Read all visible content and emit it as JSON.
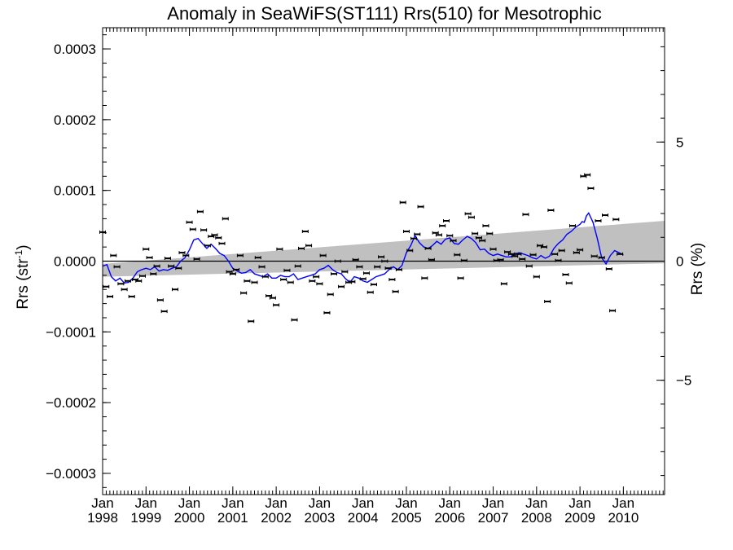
{
  "chart_data": {
    "type": "scatter",
    "title": "Anomaly in SeaWiFS(ST111) Rrs(510) for Mesotrophic",
    "ylabel_left": "Rrs (str",
    "ylabel_left_sup": "-1",
    "ylabel_left_close": ")",
    "ylabel_right": "Rrs (%)",
    "xlim": [
      1998.0,
      2010.95
    ],
    "ylim": [
      -0.00033,
      0.00033
    ],
    "ylim_right": [
      -9.8,
      9.8
    ],
    "y_ticks": [
      {
        "value": 0.0003,
        "label": "0.0003"
      },
      {
        "value": 0.0002,
        "label": "0.0002"
      },
      {
        "value": 0.0001,
        "label": "0.0001"
      },
      {
        "value": 0.0,
        "label": "0.0000"
      },
      {
        "value": -0.0001,
        "label": "−0.0001"
      },
      {
        "value": -0.0002,
        "label": "−0.0002"
      },
      {
        "value": -0.0003,
        "label": "−0.0003"
      }
    ],
    "y_right_ticks": [
      {
        "value": 5,
        "label": "5"
      },
      {
        "value": 0,
        "label": "0"
      },
      {
        "value": -5,
        "label": "−5"
      }
    ],
    "x_ticks": [
      {
        "value": 1998,
        "month": "Jan",
        "year": "1998"
      },
      {
        "value": 1999,
        "month": "Jan",
        "year": "1999"
      },
      {
        "value": 2000,
        "month": "Jan",
        "year": "2000"
      },
      {
        "value": 2001,
        "month": "Jan",
        "year": "2001"
      },
      {
        "value": 2002,
        "month": "Jan",
        "year": "2002"
      },
      {
        "value": 2003,
        "month": "Jan",
        "year": "2003"
      },
      {
        "value": 2004,
        "month": "Jan",
        "year": "2004"
      },
      {
        "value": 2005,
        "month": "Jan",
        "year": "2005"
      },
      {
        "value": 2006,
        "month": "Jan",
        "year": "2006"
      },
      {
        "value": 2007,
        "month": "Jan",
        "year": "2007"
      },
      {
        "value": 2008,
        "month": "Jan",
        "year": "2008"
      },
      {
        "value": 2009,
        "month": "Jan",
        "year": "2009"
      },
      {
        "value": 2010,
        "month": "Jan",
        "year": "2010"
      }
    ],
    "trend_band": {
      "lower": [
        [
          1998.0,
          -2.2e-05
        ],
        [
          2010.95,
          -3e-06
        ]
      ],
      "upper": [
        [
          1998.0,
          -4e-06
        ],
        [
          2010.95,
          5.7e-05
        ]
      ]
    },
    "zero_line": 0.0,
    "points": [
      [
        1998.0,
        4.1e-05
      ],
      [
        1998.08,
        -3.6e-05
      ],
      [
        1998.17,
        -5e-05
      ],
      [
        1998.25,
        8e-06
      ],
      [
        1998.33,
        -8e-06
      ],
      [
        1998.42,
        -3.2e-05
      ],
      [
        1998.5,
        -4e-05
      ],
      [
        1998.58,
        -2.8e-05
      ],
      [
        1998.67,
        -5e-05
      ],
      [
        1998.75,
        -2.6e-05
      ],
      [
        1998.83,
        -2.8e-05
      ],
      [
        1998.92,
        -2.1e-05
      ],
      [
        1999.0,
        1.7e-05
      ],
      [
        1999.08,
        5e-06
      ],
      [
        1999.17,
        -1.8e-05
      ],
      [
        1999.25,
        -7e-06
      ],
      [
        1999.33,
        -5.5e-05
      ],
      [
        1999.42,
        -7.1e-05
      ],
      [
        1999.5,
        4e-06
      ],
      [
        1999.58,
        -7e-06
      ],
      [
        1999.67,
        -4e-05
      ],
      [
        1999.75,
        -1e-05
      ],
      [
        1999.83,
        1.2e-05
      ],
      [
        1999.92,
        8e-06
      ],
      [
        2000.0,
        5.5e-05
      ],
      [
        2000.08,
        4.5e-05
      ],
      [
        2000.17,
        3e-06
      ],
      [
        2000.25,
        7e-05
      ],
      [
        2000.33,
        4.4e-05
      ],
      [
        2000.42,
        2.2e-05
      ],
      [
        2000.5,
        3.5e-05
      ],
      [
        2000.58,
        3.7e-05
      ],
      [
        2000.67,
        3.3e-05
      ],
      [
        2000.75,
        2.5e-05
      ],
      [
        2000.83,
        6e-05
      ],
      [
        2000.92,
        -1.5e-05
      ],
      [
        2001.0,
        -1.8e-05
      ],
      [
        2001.08,
        -1.2e-05
      ],
      [
        2001.17,
        8e-06
      ],
      [
        2001.25,
        -4.5e-05
      ],
      [
        2001.33,
        -2.8e-05
      ],
      [
        2001.42,
        -8.5e-05
      ],
      [
        2001.5,
        -3e-05
      ],
      [
        2001.58,
        5e-06
      ],
      [
        2001.67,
        -8e-06
      ],
      [
        2001.75,
        -2.2e-05
      ],
      [
        2001.83,
        -4.9e-05
      ],
      [
        2001.92,
        -5.2e-05
      ],
      [
        2002.0,
        -6.2e-05
      ],
      [
        2002.08,
        1.7e-05
      ],
      [
        2002.17,
        -2.6e-05
      ],
      [
        2002.25,
        -1.3e-05
      ],
      [
        2002.33,
        -3e-05
      ],
      [
        2002.42,
        -8.3e-05
      ],
      [
        2002.5,
        -7e-06
      ],
      [
        2002.58,
        1.8e-05
      ],
      [
        2002.67,
        4.2e-05
      ],
      [
        2002.75,
        2.2e-05
      ],
      [
        2002.83,
        -2.8e-05
      ],
      [
        2002.92,
        -2.2e-05
      ],
      [
        2003.0,
        -3.2e-05
      ],
      [
        2003.08,
        8e-06
      ],
      [
        2003.17,
        -7.3e-05
      ],
      [
        2003.25,
        -4.7e-05
      ],
      [
        2003.33,
        -1.8e-05
      ],
      [
        2003.42,
        0.0
      ],
      [
        2003.5,
        -3.6e-05
      ],
      [
        2003.58,
        -1.5e-05
      ],
      [
        2003.67,
        -3e-05
      ],
      [
        2003.75,
        -2.9e-05
      ],
      [
        2003.83,
        2e-06
      ],
      [
        2003.92,
        -8e-06
      ],
      [
        2004.0,
        -2.5e-05
      ],
      [
        2004.08,
        -1.7e-05
      ],
      [
        2004.17,
        -4.4e-05
      ],
      [
        2004.25,
        -3.3e-05
      ],
      [
        2004.33,
        -8e-06
      ],
      [
        2004.42,
        6e-06
      ],
      [
        2004.5,
        0.0
      ],
      [
        2004.58,
        -1e-05
      ],
      [
        2004.67,
        -2.6e-05
      ],
      [
        2004.75,
        -4.3e-05
      ],
      [
        2004.83,
        -1.2e-05
      ],
      [
        2004.92,
        8.3e-05
      ],
      [
        2005.0,
        4.2e-05
      ],
      [
        2005.08,
        1.5e-05
      ],
      [
        2005.17,
        3.2e-05
      ],
      [
        2005.25,
        3.8e-05
      ],
      [
        2005.33,
        7.7e-05
      ],
      [
        2005.42,
        -2.4e-05
      ],
      [
        2005.5,
        1.8e-05
      ],
      [
        2005.58,
        2e-06
      ],
      [
        2005.67,
        4e-05
      ],
      [
        2005.75,
        3.7e-05
      ],
      [
        2005.83,
        5e-05
      ],
      [
        2005.92,
        5.7e-05
      ],
      [
        2006.0,
        3.6e-05
      ],
      [
        2006.08,
        2.9e-05
      ],
      [
        2006.17,
        9e-06
      ],
      [
        2006.25,
        -2.4e-05
      ],
      [
        2006.33,
        1e-06
      ],
      [
        2006.42,
        6.7e-05
      ],
      [
        2006.5,
        6.2e-05
      ],
      [
        2006.58,
        3.9e-05
      ],
      [
        2006.67,
        3.3e-05
      ],
      [
        2006.75,
        2.9e-05
      ],
      [
        2006.83,
        5e-05
      ],
      [
        2006.92,
        3.9e-05
      ],
      [
        2007.0,
        1.7e-05
      ],
      [
        2007.08,
        1e-06
      ],
      [
        2007.17,
        2e-06
      ],
      [
        2007.25,
        -3.2e-05
      ],
      [
        2007.33,
        1.3e-05
      ],
      [
        2007.42,
        1e-05
      ],
      [
        2007.5,
        7e-06
      ],
      [
        2007.58,
        1e-05
      ],
      [
        2007.67,
        3e-06
      ],
      [
        2007.75,
        6.6e-05
      ],
      [
        2007.83,
        -7e-06
      ],
      [
        2007.92,
        9e-06
      ],
      [
        2008.0,
        -2.2e-05
      ],
      [
        2008.08,
        2.2e-05
      ],
      [
        2008.17,
        2e-05
      ],
      [
        2008.25,
        -5.7e-05
      ],
      [
        2008.33,
        7.2e-05
      ],
      [
        2008.42,
        1e-05
      ],
      [
        2008.5,
        1e-06
      ],
      [
        2008.58,
        1.5e-05
      ],
      [
        2008.67,
        -1.9e-05
      ],
      [
        2008.75,
        -3.1e-05
      ],
      [
        2008.83,
        5e-05
      ],
      [
        2008.92,
        1.2e-05
      ],
      [
        2009.0,
        1.6e-05
      ],
      [
        2009.08,
        0.00012
      ],
      [
        2009.17,
        0.000122
      ],
      [
        2009.25,
        0.000103
      ],
      [
        2009.33,
        7e-06
      ],
      [
        2009.42,
        5.7e-05
      ],
      [
        2009.5,
        5e-06
      ],
      [
        2009.58,
        6.5e-05
      ],
      [
        2009.67,
        -1.1e-05
      ],
      [
        2009.75,
        -7e-05
      ],
      [
        2009.83,
        5.9e-05
      ],
      [
        2009.92,
        1e-05
      ]
    ],
    "moving_average": [
      [
        1998.0,
        -7e-06
      ],
      [
        1998.1,
        -5e-06
      ],
      [
        1998.2,
        -2.2e-05
      ],
      [
        1998.3,
        -2.8e-05
      ],
      [
        1998.4,
        -2.4e-05
      ],
      [
        1998.5,
        -3.1e-05
      ],
      [
        1998.6,
        -3e-05
      ],
      [
        1998.7,
        -2.4e-05
      ],
      [
        1998.8,
        -1.5e-05
      ],
      [
        1998.9,
        -1.2e-05
      ],
      [
        1999.0,
        -1e-05
      ],
      [
        1999.1,
        -1.2e-05
      ],
      [
        1999.2,
        -8e-06
      ],
      [
        1999.3,
        -1.4e-05
      ],
      [
        1999.4,
        -1.2e-05
      ],
      [
        1999.5,
        -1.3e-05
      ],
      [
        1999.6,
        -1e-05
      ],
      [
        1999.7,
        -8e-06
      ],
      [
        1999.8,
        0.0
      ],
      [
        1999.9,
        5e-06
      ],
      [
        2000.0,
        1.6e-05
      ],
      [
        2000.1,
        3e-05
      ],
      [
        2000.2,
        3.2e-05
      ],
      [
        2000.3,
        2.5e-05
      ],
      [
        2000.4,
        1.8e-05
      ],
      [
        2000.5,
        2.4e-05
      ],
      [
        2000.6,
        1.8e-05
      ],
      [
        2000.7,
        1.1e-05
      ],
      [
        2000.8,
        8e-06
      ],
      [
        2000.9,
        0.0
      ],
      [
        2001.0,
        -1e-05
      ],
      [
        2001.1,
        -1.4e-05
      ],
      [
        2001.2,
        -1.7e-05
      ],
      [
        2001.3,
        -1.6e-05
      ],
      [
        2001.4,
        -1.2e-05
      ],
      [
        2001.5,
        -1.8e-05
      ],
      [
        2001.6,
        -2e-05
      ],
      [
        2001.7,
        -2.2e-05
      ],
      [
        2001.8,
        -1.8e-05
      ],
      [
        2001.9,
        -2.4e-05
      ],
      [
        2002.0,
        -2.4e-05
      ],
      [
        2002.1,
        -2e-05
      ],
      [
        2002.2,
        -2.2e-05
      ],
      [
        2002.3,
        -2.2e-05
      ],
      [
        2002.4,
        -1.8e-05
      ],
      [
        2002.5,
        -2.6e-05
      ],
      [
        2002.6,
        -2.4e-05
      ],
      [
        2002.7,
        -2.2e-05
      ],
      [
        2002.8,
        -2e-05
      ],
      [
        2002.9,
        -1.8e-05
      ],
      [
        2003.0,
        -1.2e-05
      ],
      [
        2003.1,
        -1e-05
      ],
      [
        2003.2,
        -6e-06
      ],
      [
        2003.3,
        -1.2e-05
      ],
      [
        2003.4,
        -1.6e-05
      ],
      [
        2003.5,
        -1.8e-05
      ],
      [
        2003.6,
        -2.5e-05
      ],
      [
        2003.7,
        -3e-05
      ],
      [
        2003.8,
        -2.2e-05
      ],
      [
        2003.9,
        -2.4e-05
      ],
      [
        2004.0,
        -2.8e-05
      ],
      [
        2004.1,
        -3e-05
      ],
      [
        2004.2,
        -2.6e-05
      ],
      [
        2004.3,
        -2.2e-05
      ],
      [
        2004.4,
        -2e-05
      ],
      [
        2004.5,
        -1.8e-05
      ],
      [
        2004.6,
        -1.2e-05
      ],
      [
        2004.7,
        -8e-06
      ],
      [
        2004.8,
        -1.2e-05
      ],
      [
        2004.9,
        -6e-06
      ],
      [
        2005.0,
        1.2e-05
      ],
      [
        2005.1,
        2.2e-05
      ],
      [
        2005.2,
        3.6e-05
      ],
      [
        2005.3,
        2.6e-05
      ],
      [
        2005.4,
        2e-05
      ],
      [
        2005.5,
        1.8e-05
      ],
      [
        2005.6,
        2.2e-05
      ],
      [
        2005.7,
        2.8e-05
      ],
      [
        2005.8,
        2.4e-05
      ],
      [
        2005.9,
        3.1e-05
      ],
      [
        2006.0,
        3.3e-05
      ],
      [
        2006.1,
        2.5e-05
      ],
      [
        2006.2,
        2.4e-05
      ],
      [
        2006.3,
        3e-05
      ],
      [
        2006.4,
        3.5e-05
      ],
      [
        2006.5,
        3.2e-05
      ],
      [
        2006.6,
        2.6e-05
      ],
      [
        2006.7,
        1.6e-05
      ],
      [
        2006.8,
        1.7e-05
      ],
      [
        2006.9,
        1.1e-05
      ],
      [
        2007.0,
        8e-06
      ],
      [
        2007.1,
        1e-05
      ],
      [
        2007.2,
        8e-06
      ],
      [
        2007.3,
        6e-06
      ],
      [
        2007.4,
        6e-06
      ],
      [
        2007.5,
        1e-05
      ],
      [
        2007.6,
        1.2e-05
      ],
      [
        2007.7,
        1e-05
      ],
      [
        2007.8,
        8e-06
      ],
      [
        2007.9,
        5e-06
      ],
      [
        2008.0,
        3e-06
      ],
      [
        2008.1,
        8e-06
      ],
      [
        2008.2,
        4e-06
      ],
      [
        2008.3,
        7e-06
      ],
      [
        2008.4,
        1.8e-05
      ],
      [
        2008.5,
        2.5e-05
      ],
      [
        2008.6,
        3e-05
      ],
      [
        2008.7,
        3.8e-05
      ],
      [
        2008.8,
        4.2e-05
      ],
      [
        2008.9,
        4.8e-05
      ],
      [
        2009.0,
        5.2e-05
      ],
      [
        2009.05,
        5.6e-05
      ],
      [
        2009.1,
        5.5e-05
      ],
      [
        2009.15,
        6.4e-05
      ],
      [
        2009.2,
        6.8e-05
      ],
      [
        2009.3,
        5.5e-05
      ],
      [
        2009.4,
        3.2e-05
      ],
      [
        2009.5,
        5e-06
      ],
      [
        2009.6,
        -4e-06
      ],
      [
        2009.7,
        8e-06
      ],
      [
        2009.8,
        1.5e-05
      ],
      [
        2009.9,
        1.2e-05
      ],
      [
        2010.0,
        9e-06
      ]
    ]
  }
}
